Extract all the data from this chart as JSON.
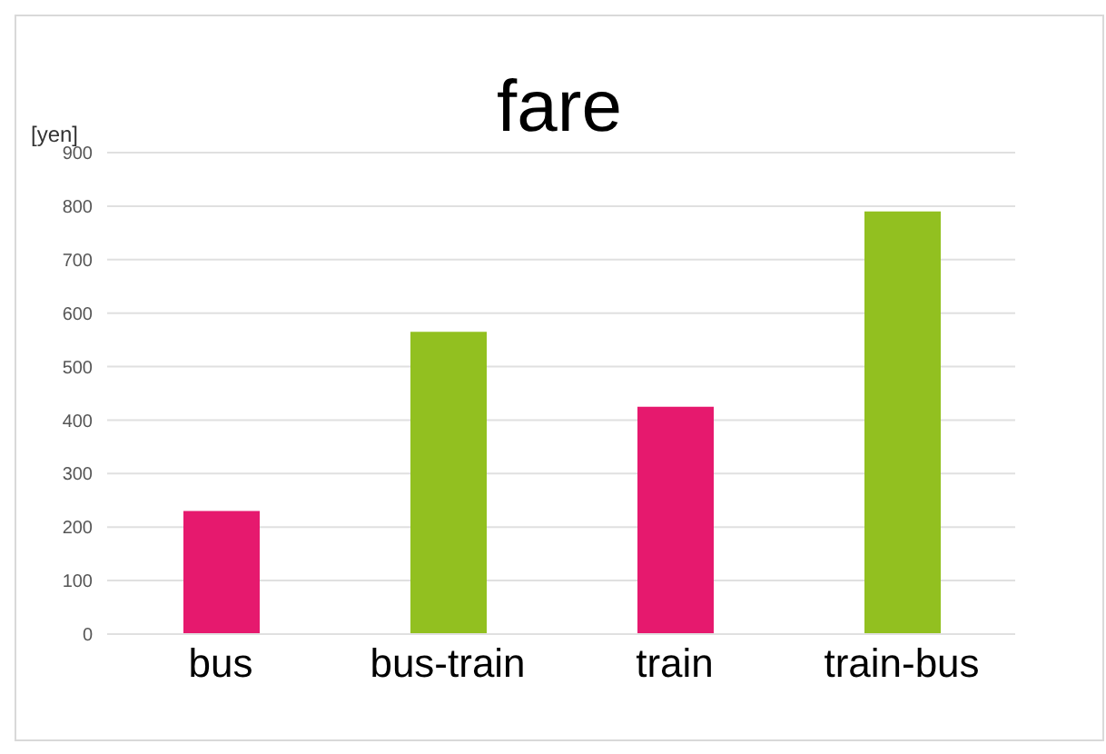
{
  "chart_data": {
    "type": "bar",
    "title": "fare",
    "ylabel": "[yen]",
    "categories": [
      "bus",
      "bus-train",
      "train",
      "train-bus"
    ],
    "values": [
      230,
      565,
      425,
      790
    ],
    "colors": [
      "#e6196e",
      "#92c020",
      "#e6196e",
      "#92c020"
    ],
    "ylim": [
      0,
      900
    ],
    "yticks": [
      0,
      100,
      200,
      300,
      400,
      500,
      600,
      700,
      800,
      900
    ],
    "grid": "y"
  }
}
